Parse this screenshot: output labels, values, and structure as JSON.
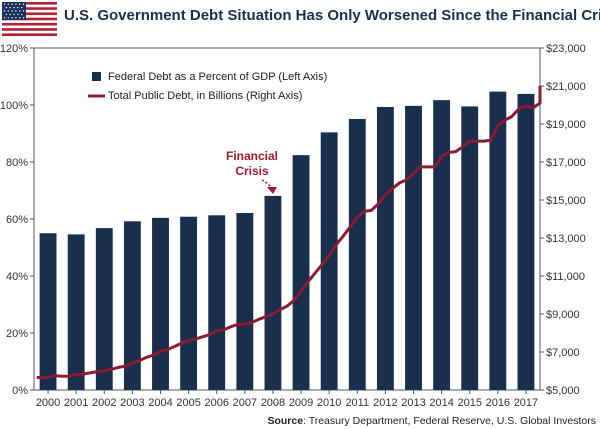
{
  "chart_data": {
    "type": "bar",
    "title": "U.S. Government Debt Situation Has Only Worsened Since the Financial Crisis",
    "categories": [
      "2000",
      "2001",
      "2002",
      "2003",
      "2004",
      "2005",
      "2006",
      "2007",
      "2008",
      "2009",
      "2010",
      "2011",
      "2012",
      "2013",
      "2014",
      "2015",
      "2016",
      "2017"
    ],
    "series": [
      {
        "name": "Federal Debt as a Percent of GDP (Left Axis)",
        "type": "bar",
        "axis": "left",
        "values": [
          55,
          54.6,
          56.8,
          59.2,
          60.4,
          60.8,
          61.3,
          62.1,
          68.1,
          82.4,
          90.4,
          95.1,
          99.3,
          99.7,
          101.7,
          99.5,
          104.7,
          103.9
        ]
      },
      {
        "name": "Total Public Debt, in Billions (Right Axis)",
        "type": "line",
        "axis": "right",
        "x": [
          1999.6,
          2000.0,
          2000.25,
          2000.5,
          2000.75,
          2001.0,
          2001.25,
          2001.5,
          2001.75,
          2002.0,
          2002.25,
          2002.5,
          2002.75,
          2003.0,
          2003.25,
          2003.5,
          2003.75,
          2004.0,
          2004.25,
          2004.5,
          2004.75,
          2005.0,
          2005.25,
          2005.5,
          2005.75,
          2006.0,
          2006.25,
          2006.5,
          2006.75,
          2007.0,
          2007.25,
          2007.5,
          2007.75,
          2008.0,
          2008.25,
          2008.5,
          2008.75,
          2009.0,
          2009.25,
          2009.5,
          2009.75,
          2010.0,
          2010.25,
          2010.5,
          2010.75,
          2011.0,
          2011.25,
          2011.5,
          2011.75,
          2012.0,
          2012.25,
          2012.5,
          2012.75,
          2013.0,
          2013.25,
          2013.5,
          2013.75,
          2014.0,
          2014.25,
          2014.5,
          2014.75,
          2015.0,
          2015.25,
          2015.5,
          2015.75,
          2016.0,
          2016.25,
          2016.5,
          2016.75,
          2017.0,
          2017.25,
          2017.5,
          2017.65
        ],
        "values": [
          5660,
          5660,
          5760,
          5720,
          5730,
          5810,
          5840,
          5900,
          5970,
          6010,
          6090,
          6190,
          6260,
          6410,
          6540,
          6720,
          6840,
          7030,
          7130,
          7290,
          7470,
          7600,
          7690,
          7800,
          7920,
          8110,
          8170,
          8330,
          8450,
          8470,
          8560,
          8720,
          8860,
          9000,
          9230,
          9410,
          9720,
          10200,
          10700,
          11150,
          11600,
          12100,
          12650,
          13100,
          13600,
          14100,
          14400,
          14450,
          14800,
          15300,
          15600,
          15900,
          16050,
          16400,
          16740,
          16740,
          16740,
          17300,
          17500,
          17550,
          17800,
          18100,
          18100,
          18100,
          18150,
          18900,
          19200,
          19400,
          19800,
          19950,
          19850,
          20100,
          21000
        ]
      }
    ],
    "y_left": {
      "ylim": [
        0,
        120
      ],
      "ticks": [
        0,
        20,
        40,
        60,
        80,
        100,
        120
      ],
      "tick_labels": [
        "0%",
        "20%",
        "40%",
        "60%",
        "80%",
        "100%",
        "120%"
      ]
    },
    "y_right": {
      "ylim": [
        5000,
        23000
      ],
      "ticks": [
        5000,
        7000,
        9000,
        11000,
        13000,
        15000,
        17000,
        19000,
        21000,
        23000
      ],
      "tick_labels": [
        "$5,000",
        "$7,000",
        "$9,000",
        "$11,000",
        "$13,000",
        "$15,000",
        "$17,000",
        "$19,000",
        "$21,000",
        "$23,000"
      ]
    },
    "grid": false,
    "legend": "top-left",
    "annotation": {
      "text": "Financial Crisis",
      "lines": [
        "Financial",
        "Crisis"
      ],
      "target": "2008",
      "color": "#9b1c2e"
    },
    "colors": {
      "bar": "#1a2f4e",
      "line": "#8a1c30",
      "annotation": "#9b1c2e",
      "title": "#1a2f4e"
    }
  },
  "source": {
    "prefix": "Source",
    "text": ": Treasury Department, Federal Reserve, U.S. Global Investors"
  },
  "flag": {
    "icon": "us-flag-icon"
  }
}
